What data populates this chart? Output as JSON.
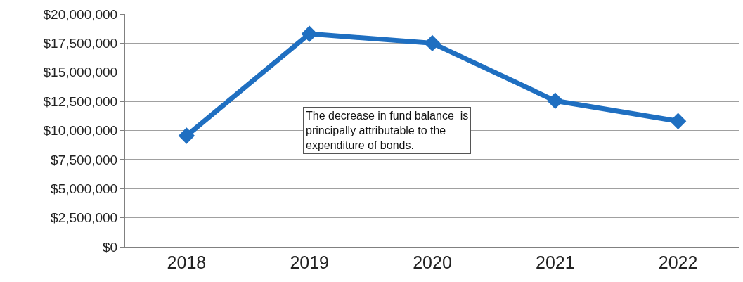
{
  "chart_data": {
    "type": "line",
    "categories": [
      "2018",
      "2019",
      "2020",
      "2021",
      "2022"
    ],
    "series": [
      {
        "color": "#1f6fc1",
        "values": [
          9550000,
          18300000,
          17500000,
          12550000,
          10800000
        ]
      }
    ],
    "ylim": [
      0,
      20000000
    ],
    "yticks": [
      {
        "value": 0,
        "label": "$0"
      },
      {
        "value": 2500000,
        "label": "$2,500,000"
      },
      {
        "value": 5000000,
        "label": "$5,000,000"
      },
      {
        "value": 7500000,
        "label": "$7,500,000"
      },
      {
        "value": 10000000,
        "label": "$10,000,000"
      },
      {
        "value": 12500000,
        "label": "$12,500,000"
      },
      {
        "value": 15000000,
        "label": "$15,000,000"
      },
      {
        "value": 17500000,
        "label": "$17,500,000"
      },
      {
        "value": 20000000,
        "label": "$20,000,000"
      }
    ],
    "annotations": [
      "The decrease in fund balance  is\nprincipally attributable to the\nexpenditure of bonds."
    ],
    "grid": "y",
    "marker": "diamond",
    "line_style": "solid",
    "legend": false
  }
}
